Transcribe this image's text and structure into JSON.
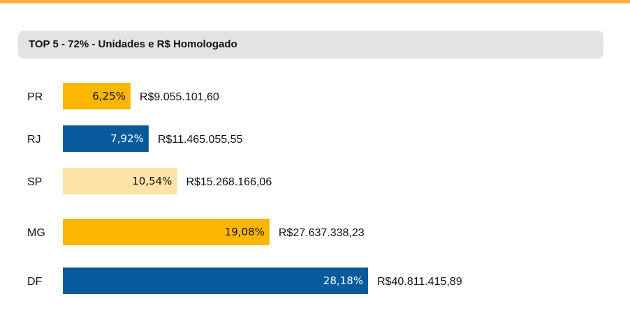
{
  "colors": {
    "top_accent": "#f4b042",
    "header_background": "#e3e3e3",
    "orange": "#fbb600",
    "blue": "#075a9b",
    "light_orange": "#fde3a6"
  },
  "header": {
    "title": "TOP 5 - 72% - Unidades e R$ Homologado"
  },
  "chart_data": {
    "type": "bar",
    "orientation": "horizontal",
    "title": "TOP 5 - 72% - Unidades e R$ Homologado",
    "categories": [
      "PR",
      "RJ",
      "SP",
      "MG",
      "DF"
    ],
    "values": [
      6.25,
      7.92,
      10.54,
      19.08,
      28.18
    ],
    "value_labels": [
      "6,25%",
      "7,92%",
      "10,54%",
      "19,08%",
      "28,18%"
    ],
    "amount_labels": [
      "R$9.055.101,60",
      "R$11.465.055,55",
      "R$15.268.166,06",
      "R$27.637.338,23",
      "R$40.811.415,89"
    ],
    "bar_colors": [
      "#fbb600",
      "#075a9b",
      "#fde3a6",
      "#fbb600",
      "#075a9b"
    ],
    "label_colors": [
      "#111111",
      "#ffffff",
      "#111111",
      "#111111",
      "#ffffff"
    ],
    "grid": false,
    "legend": "none"
  }
}
